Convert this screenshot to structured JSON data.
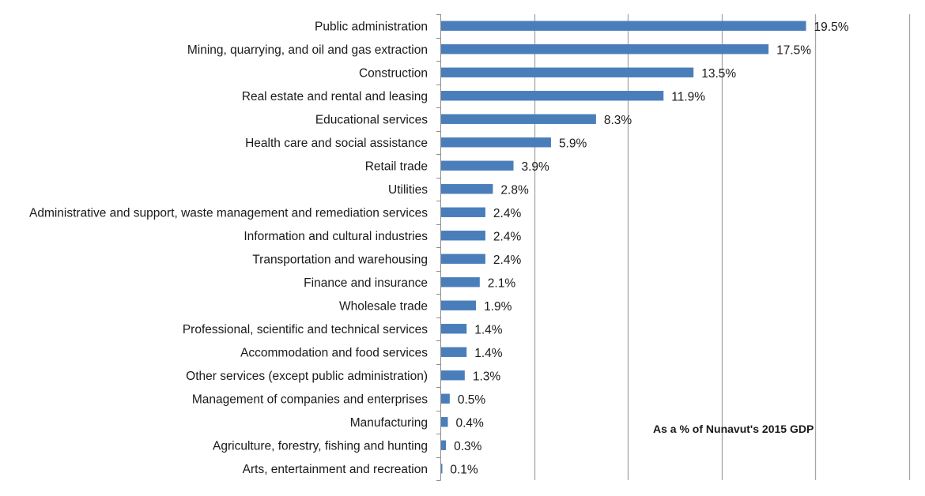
{
  "chart_data": {
    "type": "bar",
    "orientation": "horizontal",
    "title": "",
    "xlabel": "",
    "ylabel": "",
    "annotation": "As a % of  Nunavut's 2015 GDP",
    "xlim": [
      0,
      25
    ],
    "x_gridlines": [
      5,
      10,
      15,
      20,
      25
    ],
    "x_tick_labels_visible": false,
    "grid": true,
    "legend": "none",
    "value_suffix": "%",
    "bar_color": "#4a7ebb",
    "gridline_color": "#a6a6a6",
    "categories": [
      "Public administration",
      "Mining, quarrying, and oil and gas extraction",
      "Construction",
      "Real estate and rental and leasing",
      "Educational services",
      "Health care and social assistance",
      "Retail trade",
      "Utilities",
      "Administrative and support, waste management and remediation services",
      "Information and cultural industries",
      "Transportation and warehousing",
      "Finance and insurance",
      "Wholesale trade",
      "Professional, scientific and technical services",
      "Accommodation and food services",
      "Other services (except public administration)",
      "Management of companies and enterprises",
      "Manufacturing",
      "Agriculture, forestry, fishing and hunting",
      "Arts, entertainment and recreation"
    ],
    "values": [
      19.5,
      17.5,
      13.5,
      11.9,
      8.3,
      5.9,
      3.9,
      2.8,
      2.4,
      2.4,
      2.4,
      2.1,
      1.9,
      1.4,
      1.4,
      1.3,
      0.5,
      0.4,
      0.3,
      0.1
    ],
    "value_labels": [
      "19.5%",
      "17.5%",
      "13.5%",
      "11.9%",
      "8.3%",
      "5.9%",
      "3.9%",
      "2.8%",
      "2.4%",
      "2.4%",
      "2.4%",
      "2.1%",
      "1.9%",
      "1.4%",
      "1.4%",
      "1.3%",
      "0.5%",
      "0.4%",
      "0.3%",
      "0.1%"
    ]
  }
}
